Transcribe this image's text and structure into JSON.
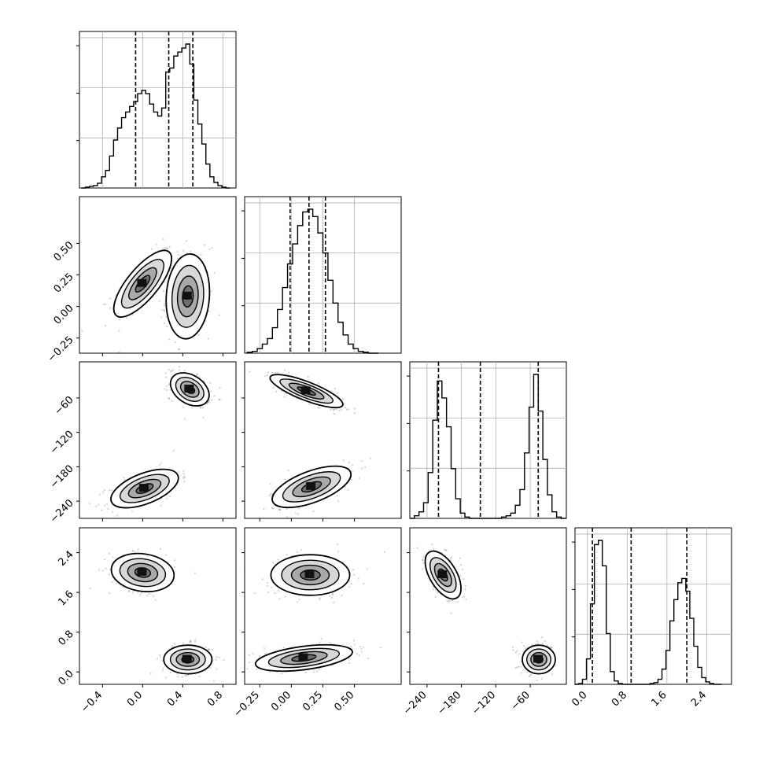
{
  "chart_data": {
    "type": "corner",
    "parameters": 4,
    "title": "",
    "grid": true,
    "quantile_lines": [
      [
        -0.07,
        0.26,
        0.5
      ],
      [
        -0.01,
        0.14,
        0.27
      ],
      [
        -220,
        -147,
        -46
      ],
      [
        0.1,
        0.88,
        2.0
      ]
    ],
    "ranges": [
      [
        -0.63,
        0.93
      ],
      [
        -0.37,
        0.87
      ],
      [
        -270,
        3
      ],
      [
        -0.25,
        2.9
      ]
    ],
    "tick_labels": {
      "p1_x": [
        "−0.4",
        "0.0",
        "0.4",
        "0.8"
      ],
      "p2_x": [
        "−0.25",
        "0.00",
        "0.25",
        "0.50"
      ],
      "p3_x": [
        "−240",
        "−180",
        "−120",
        "−60"
      ],
      "p4_x": [
        "0.0",
        "0.8",
        "1.6",
        "2.4"
      ],
      "p2_y": [
        "0.50",
        "0.25",
        "0.00",
        "−0.25"
      ],
      "p3_y": [
        "−60",
        "−120",
        "−180",
        "−240"
      ],
      "p4_y": [
        "2.4",
        "1.6",
        "0.8",
        "0.0"
      ]
    },
    "tick_values": {
      "p1": [
        -0.4,
        0.0,
        0.4,
        0.8
      ],
      "p2": [
        -0.25,
        0.0,
        0.25,
        0.5
      ],
      "p3": [
        -240,
        -180,
        -120,
        -60
      ],
      "p4": [
        0.0,
        0.8,
        1.6,
        2.4
      ]
    },
    "histograms": [
      {
        "param": 1,
        "bin_centers": [
          -0.59,
          -0.55,
          -0.51,
          -0.47,
          -0.43,
          -0.39,
          -0.35,
          -0.31,
          -0.27,
          -0.23,
          -0.19,
          -0.15,
          -0.11,
          -0.07,
          -0.03,
          0.01,
          0.05,
          0.09,
          0.13,
          0.17,
          0.21,
          0.25,
          0.29,
          0.33,
          0.37,
          0.41,
          0.45,
          0.49,
          0.53,
          0.57,
          0.61,
          0.65,
          0.69,
          0.73,
          0.77,
          0.81,
          0.85
        ],
        "counts": [
          0,
          1,
          2,
          3,
          6,
          14,
          22,
          40,
          60,
          75,
          88,
          95,
          102,
          108,
          118,
          122,
          118,
          105,
          95,
          90,
          100,
          145,
          150,
          165,
          170,
          175,
          180,
          155,
          110,
          80,
          55,
          30,
          14,
          7,
          3,
          1,
          0
        ]
      },
      {
        "param": 2,
        "bin_centers": [
          -0.33,
          -0.29,
          -0.25,
          -0.21,
          -0.17,
          -0.13,
          -0.09,
          -0.05,
          -0.01,
          0.03,
          0.07,
          0.11,
          0.15,
          0.19,
          0.23,
          0.27,
          0.31,
          0.35,
          0.39,
          0.43,
          0.47,
          0.51,
          0.55,
          0.59,
          0.63,
          0.67
        ],
        "counts": [
          1,
          2,
          5,
          10,
          16,
          28,
          48,
          72,
          98,
          120,
          140,
          155,
          158,
          150,
          132,
          110,
          80,
          55,
          34,
          20,
          10,
          5,
          2,
          1,
          0,
          0
        ]
      },
      {
        "param": 3,
        "bin_centers": [
          -266,
          -258,
          -250,
          -242,
          -234,
          -226,
          -218,
          -210,
          -202,
          -194,
          -186,
          -178,
          -170,
          -162,
          -154,
          -146,
          -138,
          -130,
          -122,
          -114,
          -106,
          -98,
          -90,
          -82,
          -74,
          -66,
          -58,
          -50,
          -42,
          -34,
          -26,
          -18,
          -10,
          -2
        ],
        "counts": [
          0,
          2,
          5,
          12,
          35,
          75,
          105,
          92,
          70,
          38,
          15,
          4,
          1,
          0,
          0,
          0,
          0,
          0,
          0,
          0,
          1,
          2,
          4,
          10,
          22,
          50,
          85,
          110,
          82,
          45,
          18,
          5,
          1,
          0
        ]
      },
      {
        "param": 4,
        "bin_centers": [
          -0.22,
          -0.14,
          -0.06,
          0.02,
          0.1,
          0.18,
          0.26,
          0.34,
          0.42,
          0.5,
          0.58,
          0.66,
          0.74,
          0.82,
          0.9,
          0.98,
          1.06,
          1.14,
          1.22,
          1.3,
          1.38,
          1.46,
          1.54,
          1.62,
          1.7,
          1.78,
          1.86,
          1.94,
          2.02,
          2.1,
          2.18,
          2.26,
          2.34,
          2.42,
          2.5,
          2.58,
          2.66
        ],
        "counts": [
          0,
          1,
          6,
          30,
          95,
          165,
          170,
          140,
          60,
          15,
          4,
          1,
          0,
          0,
          0,
          0,
          0,
          0,
          0,
          1,
          2,
          6,
          18,
          40,
          75,
          100,
          120,
          125,
          110,
          78,
          45,
          20,
          8,
          3,
          1,
          0,
          0
        ]
      }
    ],
    "modes_2d": [
      {
        "pair": [
          1,
          2
        ],
        "modes": [
          {
            "x": 0.0,
            "y": 0.18,
            "sx": 0.12,
            "sy": 0.11,
            "rho": 0.75
          },
          {
            "x": 0.45,
            "y": 0.08,
            "sx": 0.09,
            "sy": 0.14,
            "rho": 0.1
          }
        ]
      },
      {
        "pair": [
          1,
          3
        ],
        "modes": [
          {
            "x": 0.47,
            "y": -45,
            "sx": 0.08,
            "sy": 12,
            "rho": -0.35
          },
          {
            "x": 0.02,
            "y": -218,
            "sx": 0.14,
            "sy": 14,
            "rho": 0.55
          }
        ]
      },
      {
        "pair": [
          1,
          4
        ],
        "modes": [
          {
            "x": 0.0,
            "y": 2.0,
            "sx": 0.13,
            "sy": 0.16,
            "rho": -0.15
          },
          {
            "x": 0.45,
            "y": 0.25,
            "sx": 0.1,
            "sy": 0.12,
            "rho": 0.0
          }
        ]
      },
      {
        "pair": [
          2,
          3
        ],
        "modes": [
          {
            "x": 0.12,
            "y": -48,
            "sx": 0.12,
            "sy": 12,
            "rho": -0.8
          },
          {
            "x": 0.16,
            "y": -215,
            "sx": 0.13,
            "sy": 15,
            "rho": 0.6
          }
        ]
      },
      {
        "pair": [
          2,
          4
        ],
        "modes": [
          {
            "x": 0.15,
            "y": 1.95,
            "sx": 0.13,
            "sy": 0.17,
            "rho": 0.0
          },
          {
            "x": 0.1,
            "y": 0.28,
            "sx": 0.16,
            "sy": 0.11,
            "rho": 0.45
          }
        ]
      },
      {
        "pair": [
          3,
          4
        ],
        "modes": [
          {
            "x": -212,
            "y": 1.95,
            "sx": 13,
            "sy": 0.2,
            "rho": -0.55
          },
          {
            "x": -45,
            "y": 0.25,
            "sx": 12,
            "sy": 0.12,
            "rho": 0.0
          }
        ]
      }
    ]
  }
}
